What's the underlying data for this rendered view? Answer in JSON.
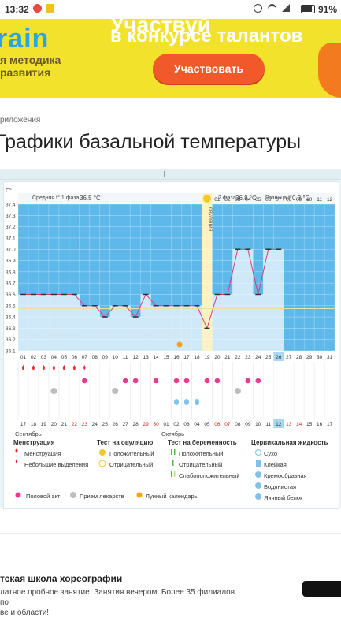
{
  "status": {
    "time": "13:32",
    "battery": "91%"
  },
  "banner": {
    "logo": "rain",
    "subtitle": [
      "я методика",
      "развития"
    ],
    "headline_top": "Участвуй",
    "headline": "в конкурсе талантов",
    "cta": "Участвовать"
  },
  "breadcrumb": "риложения",
  "title": "Графики базальной температуры",
  "chart": {
    "unit": "C°",
    "phase1": {
      "label": "Средняя t° 1 фаза",
      "value": "36.5 °C"
    },
    "phase2": {
      "label": "2 фаза",
      "value": "36.8 °C"
    },
    "diff": {
      "label": "Разница t°",
      "value": "0.3 °C"
    },
    "ovulation_label": "овуляция",
    "month1": "Сентябрь",
    "month2": "Октябрь"
  },
  "chart_data": {
    "type": "line",
    "y_ticks": [
      "37.4",
      "37.3",
      "37.2",
      "37.1",
      "37.0",
      "36.9",
      "36.8",
      "36.7",
      "36.6",
      "36.5",
      "36.4",
      "36.3",
      "36.2",
      "36.1"
    ],
    "ylim": [
      36.1,
      37.4
    ],
    "cycle_days": [
      "01",
      "02",
      "03",
      "04",
      "05",
      "06",
      "07",
      "08",
      "09",
      "10",
      "11",
      "12",
      "13",
      "14",
      "15",
      "16",
      "17",
      "18",
      "19",
      "20",
      "21",
      "22",
      "23",
      "24",
      "25",
      "26",
      "27",
      "28",
      "29",
      "30",
      "31"
    ],
    "top_days": [
      "01",
      "02",
      "03",
      "04",
      "05",
      "06",
      "07",
      "08",
      "09",
      "10",
      "11",
      "12"
    ],
    "dates": [
      "17",
      "18",
      "19",
      "20",
      "21",
      "22",
      "23",
      "24",
      "25",
      "26",
      "27",
      "28",
      "29",
      "30",
      "01",
      "02",
      "03",
      "04",
      "05",
      "06",
      "07",
      "08",
      "09",
      "10",
      "11",
      "12",
      "13",
      "14",
      "15",
      "16",
      "17"
    ],
    "red_date_indices": [
      5,
      6,
      12,
      13,
      19,
      20,
      26,
      27
    ],
    "highlight_day_index": 25,
    "ovulation_day_index": 18,
    "temperatures": [
      36.6,
      36.6,
      36.6,
      36.6,
      36.6,
      36.6,
      36.5,
      36.5,
      36.4,
      36.5,
      36.5,
      36.4,
      36.6,
      36.5,
      36.5,
      36.5,
      36.5,
      36.5,
      36.3,
      36.6,
      36.6,
      37.0,
      37.0,
      36.6,
      37.0,
      37.0,
      null,
      null,
      null,
      null,
      null
    ],
    "menstruation_days": [
      0,
      1,
      2,
      3,
      4,
      5
    ],
    "light_discharge_days": [
      6
    ],
    "intercourse_days": [
      6,
      10,
      11,
      13,
      15,
      16,
      18,
      19,
      22,
      23
    ],
    "medication_days": [
      3,
      9,
      21
    ],
    "pregnancy_test_days": [
      15,
      16,
      17
    ],
    "moon_day_index": 15,
    "baseline": 36.5
  },
  "legend": {
    "col1": {
      "title": "Менструация",
      "items": [
        "Менструация",
        "Небольшие выделения"
      ]
    },
    "col2": {
      "title": "Тест на овуляцию",
      "items": [
        "Положительный",
        "Отрицательный"
      ]
    },
    "col3": {
      "title": "Тест на беременность",
      "items": [
        "Положительный",
        "Отрицательный",
        "Слабоположительный"
      ]
    },
    "col4": {
      "title": "Цервикальная жидкость",
      "items": [
        "Сухо",
        "Клейкая",
        "Кремообразная",
        "Водянистая",
        "Яичный белок"
      ]
    },
    "bottom": [
      "Половой акт",
      "Прием лекарств",
      "Лунный календарь"
    ]
  },
  "ad": {
    "title": "тская школа хореографии",
    "text": "латное пробное занятие. Занятия вечером. Более 35 филиалов по\nве и области!"
  },
  "colors": {
    "chart_fill": "#cfe9f8",
    "chart_bg": "#5fb8ea",
    "line": "#e03a7a",
    "accent": "#f1592a",
    "banner": "#f2e22b"
  }
}
